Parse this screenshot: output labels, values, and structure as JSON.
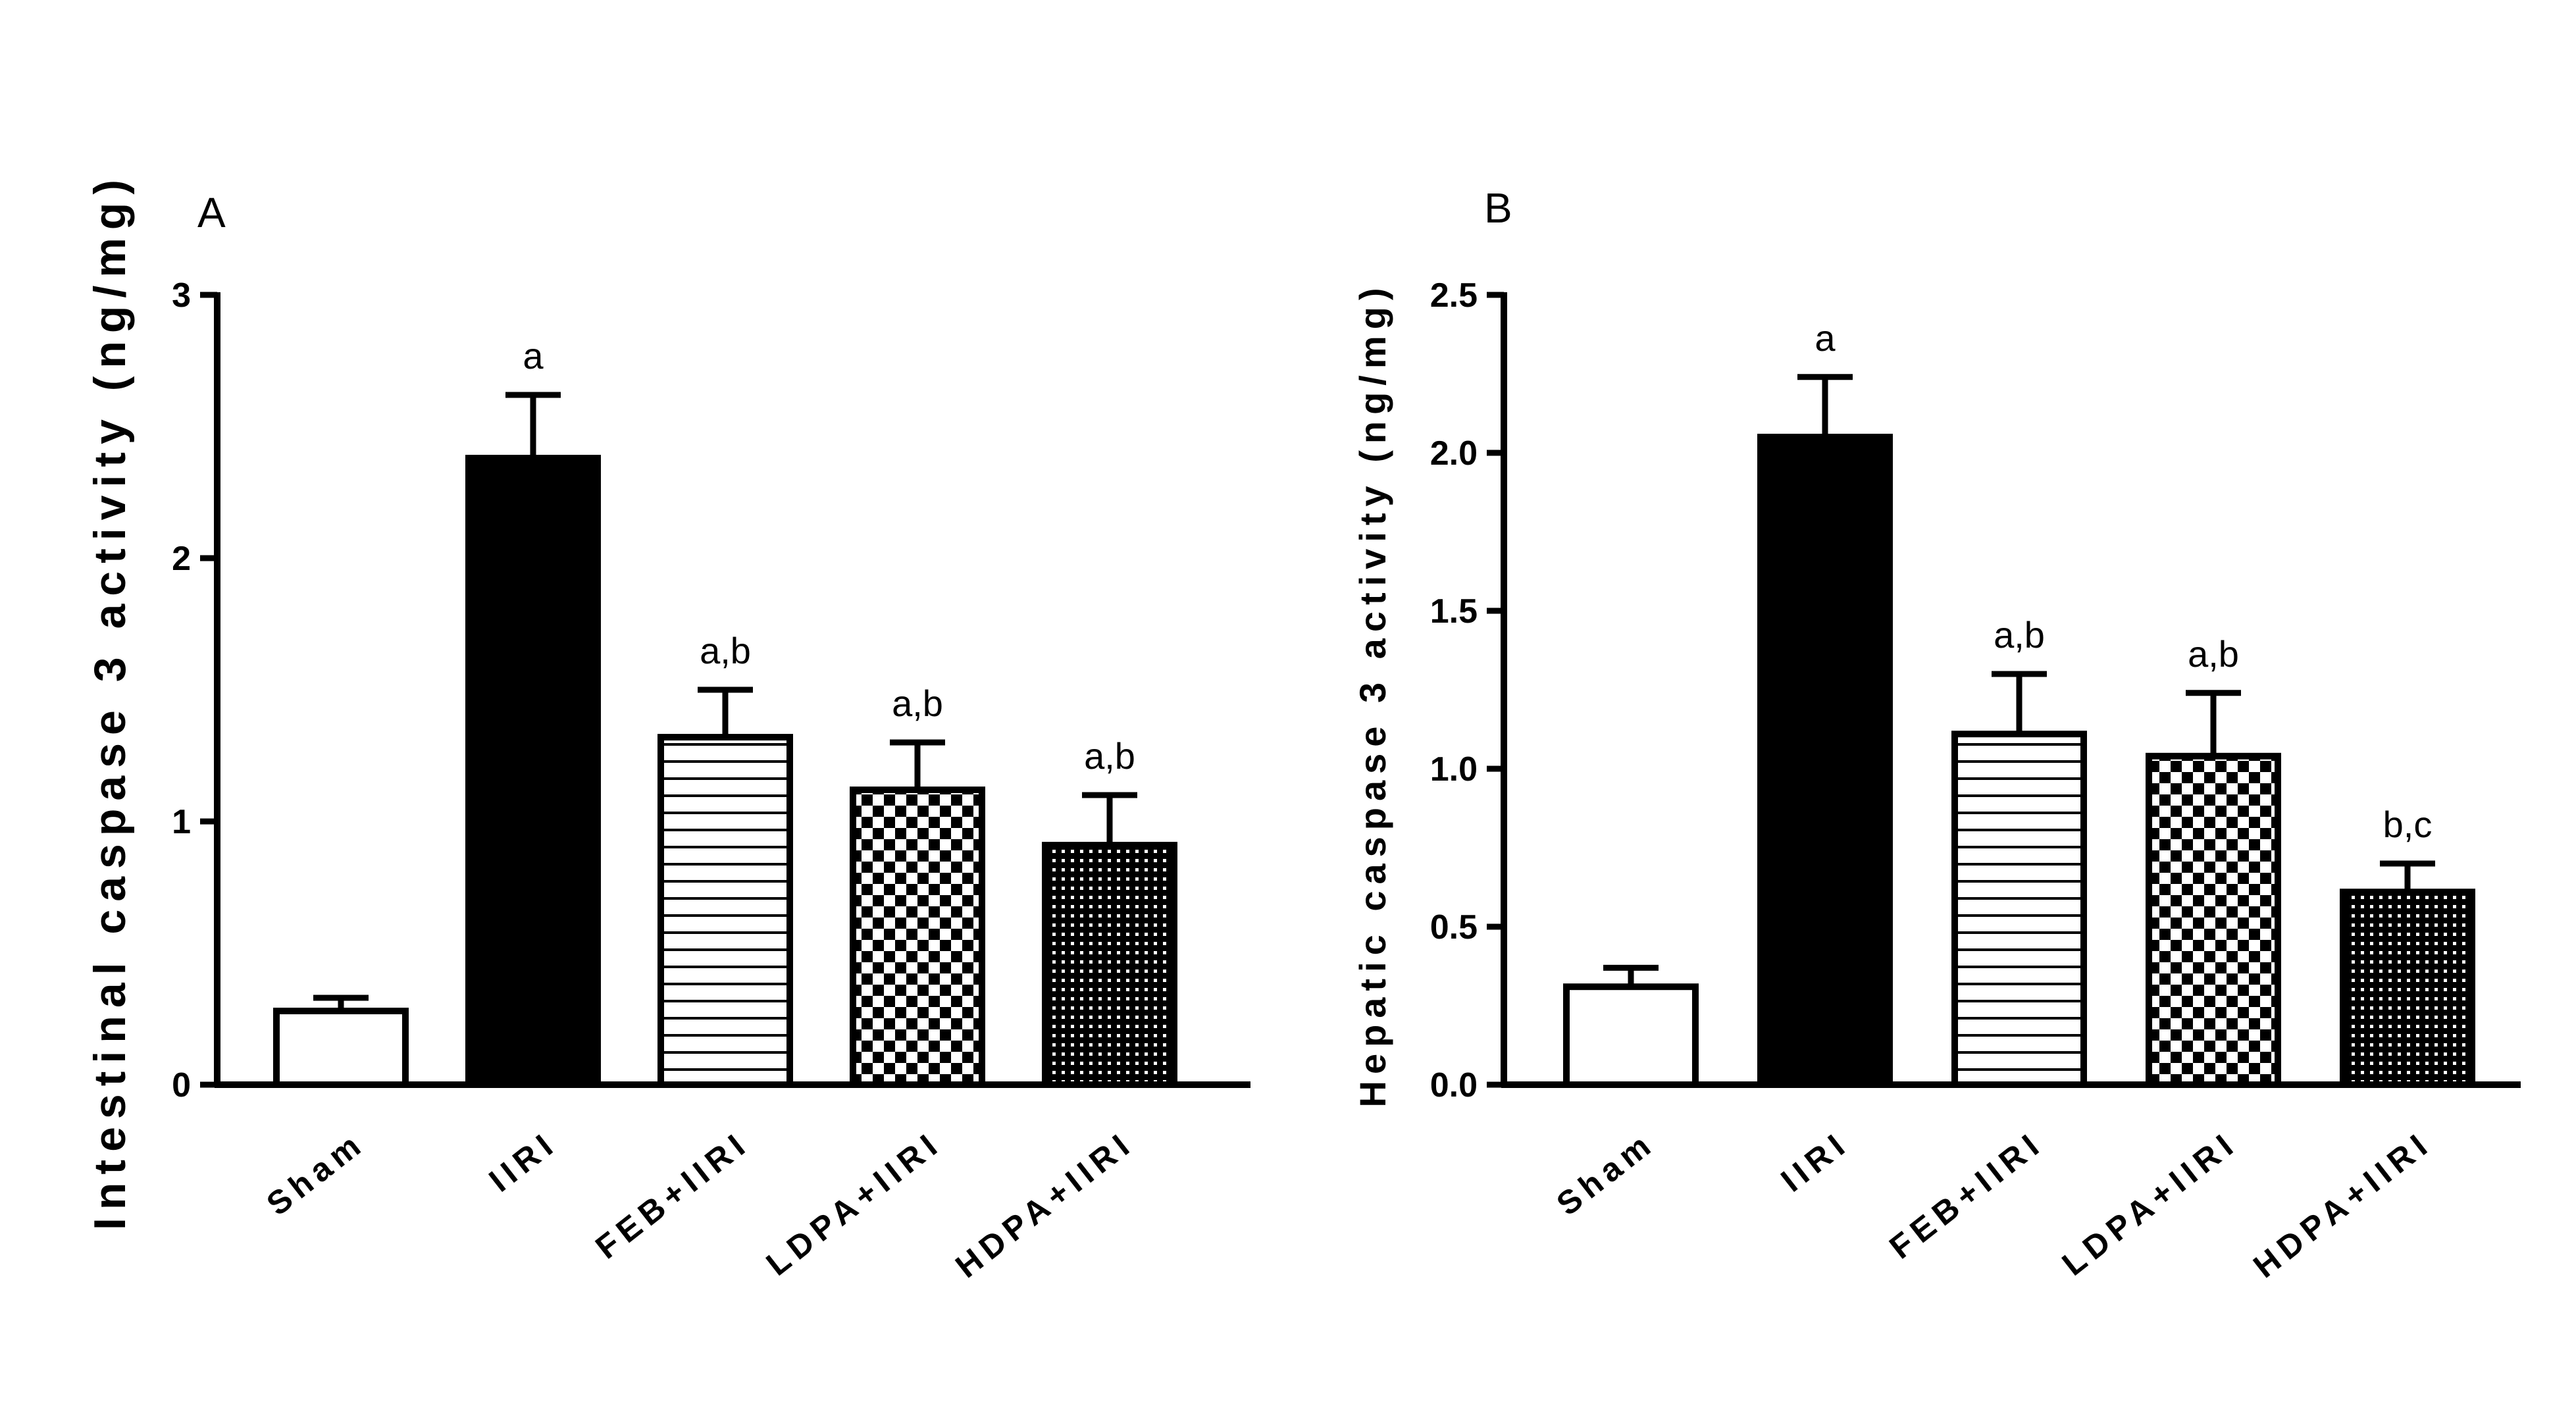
{
  "chart_data": [
    {
      "type": "bar",
      "panel_label": "A",
      "ylabel": "Intestinal caspase 3 activity (ng/mg)",
      "xlabel": "",
      "categories": [
        "Sham",
        "IIRI",
        "FEB+IIRI",
        "LDPA+IIRI",
        "HDPA+IIRI"
      ],
      "values": [
        0.28,
        2.38,
        1.32,
        1.12,
        0.91
      ],
      "errors": [
        0.05,
        0.24,
        0.18,
        0.18,
        0.19
      ],
      "significance": [
        "",
        "a",
        "a,b",
        "a,b",
        "a,b"
      ],
      "ylim": [
        0,
        3
      ],
      "yticks": [
        0,
        1,
        2,
        3
      ],
      "ytick_labels": [
        "0",
        "1",
        "2",
        "3"
      ],
      "bar_fills": [
        "white",
        "solid-black",
        "horizontal-lines",
        "checkerboard",
        "dotted-dark"
      ]
    },
    {
      "type": "bar",
      "panel_label": "B",
      "ylabel": "Hepatic caspase 3 activity (ng/mg)",
      "xlabel": "",
      "categories": [
        "Sham",
        "IIRI",
        "FEB+IIRI",
        "LDPA+IIRI",
        "HDPA+IIRI"
      ],
      "values": [
        0.31,
        2.05,
        1.11,
        1.04,
        0.61
      ],
      "errors": [
        0.06,
        0.19,
        0.19,
        0.2,
        0.09
      ],
      "significance": [
        "",
        "a",
        "a,b",
        "a,b",
        "b,c"
      ],
      "ylim": [
        0,
        2.5
      ],
      "yticks": [
        0,
        0.5,
        1,
        1.5,
        2,
        2.5
      ],
      "ytick_labels": [
        "0.0",
        "0.5",
        "1.0",
        "1.5",
        "2.0",
        "2.5"
      ],
      "bar_fills": [
        "white",
        "solid-black",
        "horizontal-lines",
        "checkerboard",
        "dotted-dark"
      ]
    }
  ],
  "colors": {
    "ink": "#000000",
    "background": "#ffffff"
  }
}
